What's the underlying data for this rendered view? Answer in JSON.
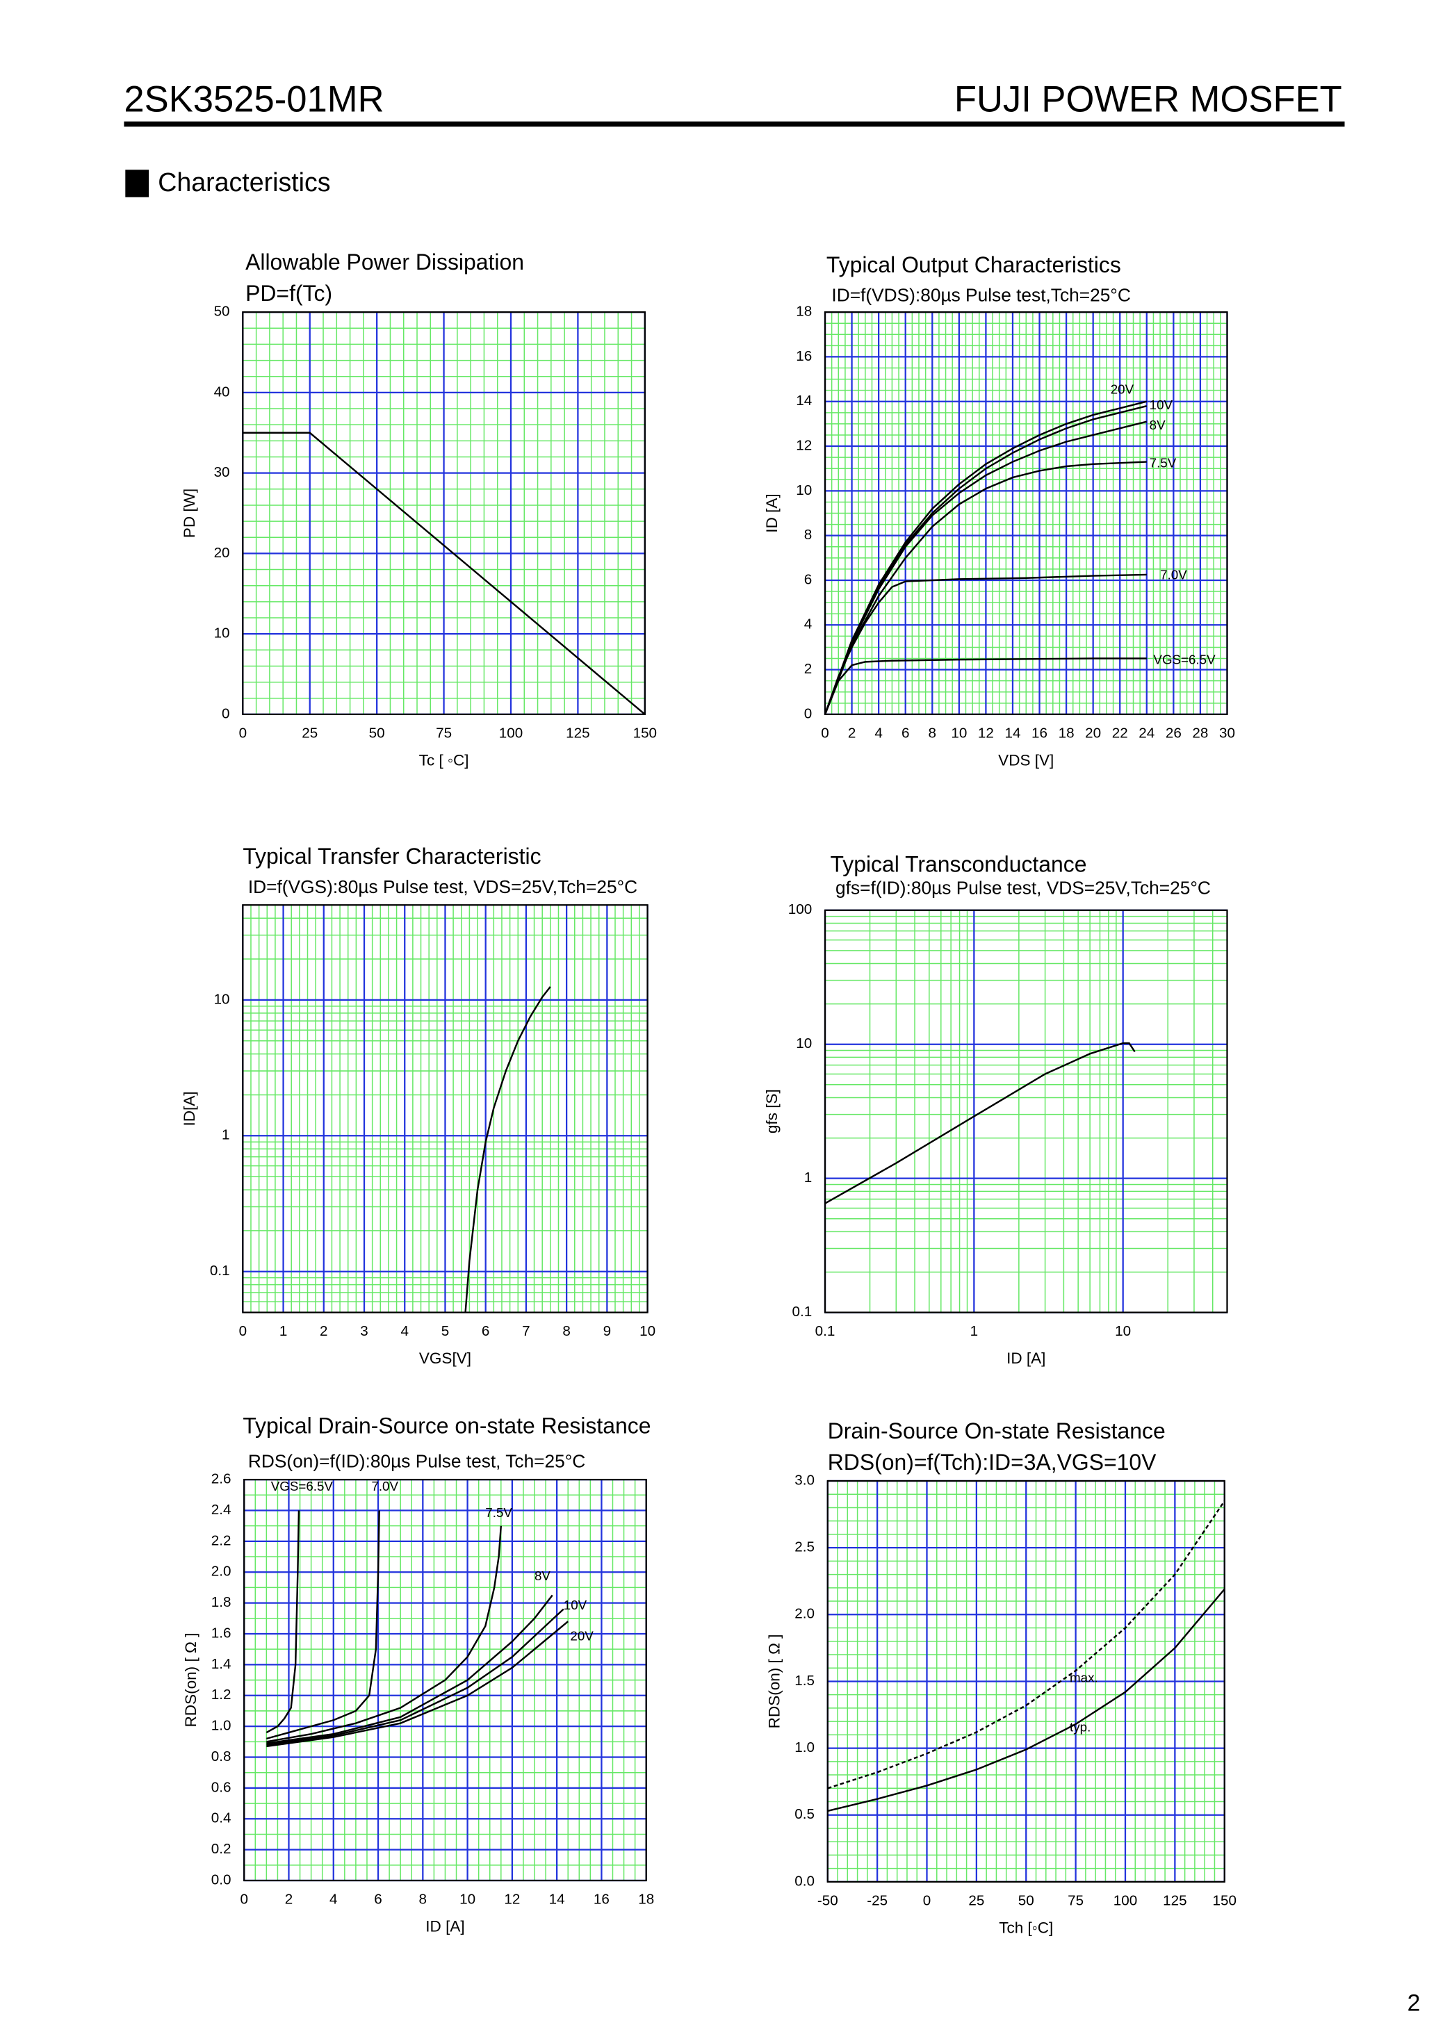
{
  "header": {
    "part": "2SK3525-01MR",
    "brand": "FUJI POWER MOSFET"
  },
  "section": "Characteristics",
  "page_number": "2",
  "chart_data": [
    {
      "type": "line",
      "title": "Allowable Power Dissipation",
      "subtitle": "PD=f(Tc)",
      "x_label": "Tc [ ◦C]",
      "y_label": "PD [W]",
      "x": [
        0,
        25,
        150
      ],
      "values": [
        35,
        35,
        0
      ],
      "color": "#000000",
      "xlim": [
        0,
        150
      ],
      "xticks": [
        0,
        25,
        50,
        75,
        100,
        125,
        150
      ],
      "ylim": [
        0,
        50
      ],
      "yticks": [
        0,
        10,
        20,
        30,
        40,
        50
      ],
      "grid": true
    },
    {
      "type": "line",
      "title": "Typical Output Characteristics",
      "subtitle": "ID=f(VDS):80µs Pulse test,Tch=25°C",
      "x_label": "VDS [V]",
      "y_label": "ID [A]",
      "series": [
        {
          "name": "20V",
          "color": "#000000",
          "x": [
            0,
            2,
            4,
            6,
            8,
            10,
            12,
            14,
            16,
            18,
            20,
            22,
            24
          ],
          "values": [
            0,
            3.3,
            5.8,
            7.7,
            9.2,
            10.3,
            11.2,
            11.9,
            12.5,
            13.0,
            13.4,
            13.7,
            14.0
          ]
        },
        {
          "name": "10V",
          "color": "#000000",
          "x": [
            0,
            2,
            4,
            6,
            8,
            10,
            12,
            14,
            16,
            18,
            20,
            22,
            24
          ],
          "values": [
            0,
            3.3,
            5.7,
            7.6,
            9.0,
            10.1,
            11.0,
            11.7,
            12.3,
            12.8,
            13.2,
            13.5,
            13.8
          ]
        },
        {
          "name": "8V",
          "color": "#000000",
          "x": [
            0,
            2,
            4,
            6,
            8,
            10,
            12,
            14,
            16,
            18,
            20,
            22,
            24
          ],
          "values": [
            0,
            3.2,
            5.6,
            7.5,
            8.9,
            9.9,
            10.7,
            11.3,
            11.8,
            12.2,
            12.5,
            12.8,
            13.1
          ]
        },
        {
          "name": "7.5V",
          "color": "#000000",
          "x": [
            0,
            2,
            4,
            6,
            8,
            10,
            12,
            14,
            16,
            18,
            20,
            22,
            24
          ],
          "values": [
            0,
            3.1,
            5.3,
            7.0,
            8.4,
            9.4,
            10.1,
            10.6,
            10.9,
            11.1,
            11.2,
            11.25,
            11.3
          ]
        },
        {
          "name": "7.0V",
          "color": "#000000",
          "x": [
            0,
            1,
            2,
            3,
            4,
            5,
            6,
            8,
            10,
            15,
            20,
            24
          ],
          "values": [
            0,
            1.7,
            3.0,
            4.1,
            5.0,
            5.7,
            5.95,
            6.0,
            6.05,
            6.1,
            6.2,
            6.25
          ]
        },
        {
          "name": "VGS=6.5V",
          "color": "#000000",
          "x": [
            0,
            1,
            2,
            3,
            5,
            10,
            20,
            24
          ],
          "values": [
            0,
            1.5,
            2.2,
            2.35,
            2.4,
            2.45,
            2.5,
            2.5
          ]
        }
      ],
      "xlim": [
        0,
        30
      ],
      "xticks": [
        0,
        2,
        4,
        6,
        8,
        10,
        12,
        14,
        16,
        18,
        20,
        22,
        24,
        26,
        28,
        30
      ],
      "ylim": [
        0,
        18
      ],
      "yticks": [
        0,
        2,
        4,
        6,
        8,
        10,
        12,
        14,
        16,
        18
      ],
      "grid": true
    },
    {
      "type": "line",
      "title": "Typical Transfer Characteristic",
      "subtitle": "ID=f(VGS):80µs Pulse test, VDS=25V,Tch=25°C",
      "x_label": "VGS[V]",
      "y_label": "ID[A]",
      "x": [
        5.5,
        5.6,
        5.8,
        6.0,
        6.2,
        6.5,
        6.8,
        7.1,
        7.4,
        7.6
      ],
      "values": [
        0.05,
        0.12,
        0.4,
        0.9,
        1.6,
        3.0,
        5.0,
        7.5,
        10.5,
        12.5
      ],
      "color": "#000000",
      "xlim": [
        0,
        10
      ],
      "xticks": [
        0,
        1,
        2,
        3,
        4,
        5,
        6,
        7,
        8,
        9,
        10
      ],
      "ylim": [
        0.05,
        50
      ],
      "yticks": [
        0.1,
        1,
        10
      ],
      "yscale": "log",
      "grid": true
    },
    {
      "type": "line",
      "title": "Typical Transconductance",
      "subtitle": "gfs=f(ID):80µs Pulse test, VDS=25V,Tch=25°C",
      "x_label": "ID [A]",
      "y_label": "gfs [S]",
      "x": [
        0.1,
        0.3,
        1,
        3,
        6,
        10,
        11,
        12
      ],
      "values": [
        0.65,
        1.3,
        2.9,
        6.0,
        8.5,
        10.2,
        10.2,
        8.8
      ],
      "color": "#000000",
      "xlim": [
        0.1,
        50
      ],
      "xticks": [
        0.1,
        1,
        10
      ],
      "xscale": "log",
      "ylim": [
        0.1,
        100
      ],
      "yticks": [
        0.1,
        1,
        10,
        100
      ],
      "yscale": "log",
      "grid": true
    },
    {
      "type": "line",
      "title": "Typical Drain-Source on-state Resistance",
      "subtitle": "RDS(on)=f(ID):80µs Pulse test, Tch=25°C",
      "x_label": "ID [A]",
      "y_label": "RDS(on) [ Ω ]",
      "series": [
        {
          "name": "VGS=6.5V",
          "color": "#000000",
          "x": [
            1,
            1.5,
            1.8,
            2.1,
            2.3,
            2.4,
            2.45
          ],
          "values": [
            0.96,
            1.0,
            1.05,
            1.12,
            1.4,
            2.0,
            2.4
          ]
        },
        {
          "name": "7.0V",
          "color": "#000000",
          "x": [
            1,
            2,
            3,
            4,
            5,
            5.6,
            5.9,
            6.0,
            6.05
          ],
          "values": [
            0.92,
            0.96,
            1.0,
            1.04,
            1.1,
            1.2,
            1.5,
            2.0,
            2.4
          ]
        },
        {
          "name": "7.5V",
          "color": "#000000",
          "x": [
            1,
            3,
            5,
            7,
            9,
            10,
            10.8,
            11.2,
            11.4,
            11.5
          ],
          "values": [
            0.9,
            0.95,
            1.02,
            1.12,
            1.3,
            1.45,
            1.65,
            1.9,
            2.1,
            2.3
          ]
        },
        {
          "name": "8V",
          "color": "#000000",
          "x": [
            1,
            4,
            7,
            10,
            12,
            13,
            13.8
          ],
          "values": [
            0.89,
            0.95,
            1.06,
            1.3,
            1.55,
            1.7,
            1.85
          ]
        },
        {
          "name": "10V",
          "color": "#000000",
          "x": [
            1,
            4,
            7,
            10,
            12,
            14,
            14.3
          ],
          "values": [
            0.88,
            0.94,
            1.04,
            1.25,
            1.45,
            1.72,
            1.76
          ]
        },
        {
          "name": "20V",
          "color": "#000000",
          "x": [
            1,
            4,
            7,
            10,
            12,
            14,
            14.5
          ],
          "values": [
            0.87,
            0.93,
            1.02,
            1.2,
            1.38,
            1.62,
            1.68
          ]
        }
      ],
      "xlim": [
        0,
        18
      ],
      "xticks": [
        0,
        2,
        4,
        6,
        8,
        10,
        12,
        14,
        16,
        18
      ],
      "ylim": [
        0,
        2.6
      ],
      "yticks": [
        {
          "value": 0,
          "label": "0.0"
        },
        0.2,
        0.4,
        0.6,
        0.8,
        {
          "value": 1,
          "label": "1.0"
        },
        1.2,
        1.4,
        1.6,
        1.8,
        {
          "value": 2,
          "label": "2.0"
        },
        2.2,
        2.4,
        2.6
      ],
      "grid": true
    },
    {
      "type": "line",
      "title": "Drain-Source On-state Resistance",
      "subtitle": "RDS(on)=f(Tch):ID=3A,VGS=10V",
      "x_label": "Tch [◦C]",
      "y_label": "RDS(on) [ Ω ]",
      "series": [
        {
          "name": "max.",
          "color": "#000000",
          "style": "dashed",
          "x": [
            -50,
            -25,
            0,
            25,
            50,
            75,
            100,
            125,
            150
          ],
          "values": [
            0.7,
            0.82,
            0.96,
            1.12,
            1.32,
            1.58,
            1.9,
            2.3,
            2.85
          ]
        },
        {
          "name": "typ.",
          "color": "#000000",
          "style": "solid",
          "x": [
            -50,
            -25,
            0,
            25,
            50,
            75,
            100,
            125,
            150
          ],
          "values": [
            0.53,
            0.62,
            0.72,
            0.84,
            0.99,
            1.18,
            1.42,
            1.75,
            2.19
          ]
        }
      ],
      "xlim": [
        -50,
        150
      ],
      "xticks": [
        -50,
        -25,
        0,
        25,
        50,
        75,
        100,
        125,
        150
      ],
      "ylim": [
        0,
        3
      ],
      "yticks": [
        {
          "value": 0,
          "label": "0.0"
        },
        0.5,
        {
          "value": 1,
          "label": "1.0"
        },
        1.5,
        {
          "value": 2,
          "label": "2.0"
        },
        2.5,
        {
          "value": 3,
          "label": "3.0"
        }
      ],
      "grid": true
    }
  ]
}
